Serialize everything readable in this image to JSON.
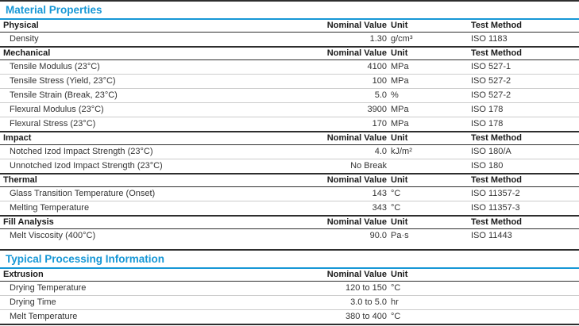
{
  "accent_color": "#1697d6",
  "sections": [
    {
      "title": "Material Properties",
      "headers": {
        "nominal": "Nominal Value",
        "unit": "Unit",
        "test": "Test Method"
      },
      "groups": [
        {
          "name": "Physical",
          "rows": [
            {
              "property": "Density",
              "value": "1.30",
              "unit": "g/cm³",
              "test": "ISO 1183"
            }
          ]
        },
        {
          "name": "Mechanical",
          "rows": [
            {
              "property": "Tensile Modulus (23°C)",
              "value": "4100",
              "unit": "MPa",
              "test": "ISO 527-1"
            },
            {
              "property": "Tensile Stress (Yield, 23°C)",
              "value": "100",
              "unit": "MPa",
              "test": "ISO 527-2"
            },
            {
              "property": "Tensile Strain (Break, 23°C)",
              "value": "5.0",
              "unit": "%",
              "test": "ISO 527-2"
            },
            {
              "property": "Flexural Modulus (23°C)",
              "value": "3900",
              "unit": "MPa",
              "test": "ISO 178"
            },
            {
              "property": "Flexural Stress (23°C)",
              "value": "170",
              "unit": "MPa",
              "test": "ISO 178"
            }
          ]
        },
        {
          "name": "Impact",
          "rows": [
            {
              "property": "Notched Izod Impact Strength (23°C)",
              "value": "4.0",
              "unit": "kJ/m²",
              "test": "ISO 180/A"
            },
            {
              "property": "Unnotched Izod Impact Strength (23°C)",
              "value": "No Break",
              "unit": "",
              "test": "ISO 180"
            }
          ]
        },
        {
          "name": "Thermal",
          "rows": [
            {
              "property": "Glass Transition Temperature (Onset)",
              "value": "143",
              "unit": "°C",
              "test": "ISO 11357-2"
            },
            {
              "property": "Melting Temperature",
              "value": "343",
              "unit": "°C",
              "test": "ISO 11357-3"
            }
          ]
        },
        {
          "name": "Fill Analysis",
          "rows": [
            {
              "property": "Melt Viscosity (400°C)",
              "value": "90.0",
              "unit": "Pa·s",
              "test": "ISO 11443"
            }
          ]
        }
      ]
    },
    {
      "title": "Typical Processing Information",
      "headers": {
        "nominal": "Nominal Value",
        "unit": "Unit",
        "test": ""
      },
      "groups": [
        {
          "name": "Extrusion",
          "rows": [
            {
              "property": "Drying Temperature",
              "value": "120 to 150",
              "unit": "°C",
              "test": ""
            },
            {
              "property": "Drying Time",
              "value": "3.0 to 5.0",
              "unit": "hr",
              "test": ""
            },
            {
              "property": "Melt Temperature",
              "value": "380 to 400",
              "unit": "°C",
              "test": ""
            }
          ]
        }
      ]
    }
  ]
}
